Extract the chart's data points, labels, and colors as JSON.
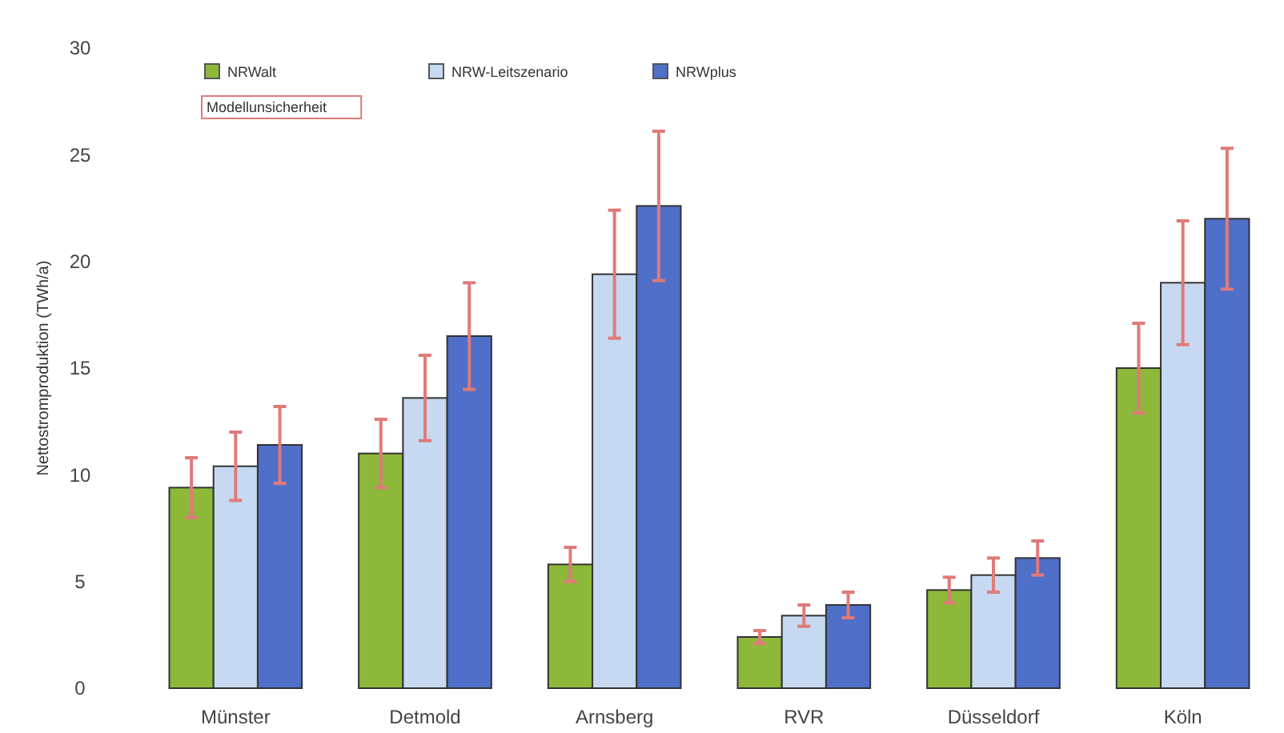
{
  "chart_data": {
    "type": "bar",
    "ylabel": "Nettostromproduktion (TWh/a)",
    "categories": [
      "Münster",
      "Detmold",
      "Arnsberg",
      "RVR",
      "Düsseldorf",
      "Köln"
    ],
    "series": [
      {
        "name": "NRWalt",
        "color": "#8db83a",
        "values": [
          9.4,
          11.0,
          5.8,
          2.4,
          4.6,
          15.0
        ],
        "errors": [
          1.4,
          1.6,
          0.8,
          0.3,
          0.6,
          2.1
        ]
      },
      {
        "name": "NRW-Leitszenario",
        "color": "#c6d9f1",
        "values": [
          10.4,
          13.6,
          19.4,
          3.4,
          5.3,
          19.0
        ],
        "errors": [
          1.6,
          2.0,
          3.0,
          0.5,
          0.8,
          2.9
        ]
      },
      {
        "name": "NRWplus",
        "color": "#4f6fc8",
        "values": [
          11.4,
          16.5,
          22.6,
          3.9,
          6.1,
          22.0
        ],
        "errors": [
          1.8,
          2.5,
          3.5,
          0.6,
          0.8,
          3.3
        ]
      }
    ],
    "annotations": [
      "Modellunsicherheit"
    ],
    "ylim": [
      0,
      30
    ],
    "yticks": [
      0,
      5,
      10,
      15,
      20,
      25,
      30
    ],
    "legend": "top left"
  }
}
